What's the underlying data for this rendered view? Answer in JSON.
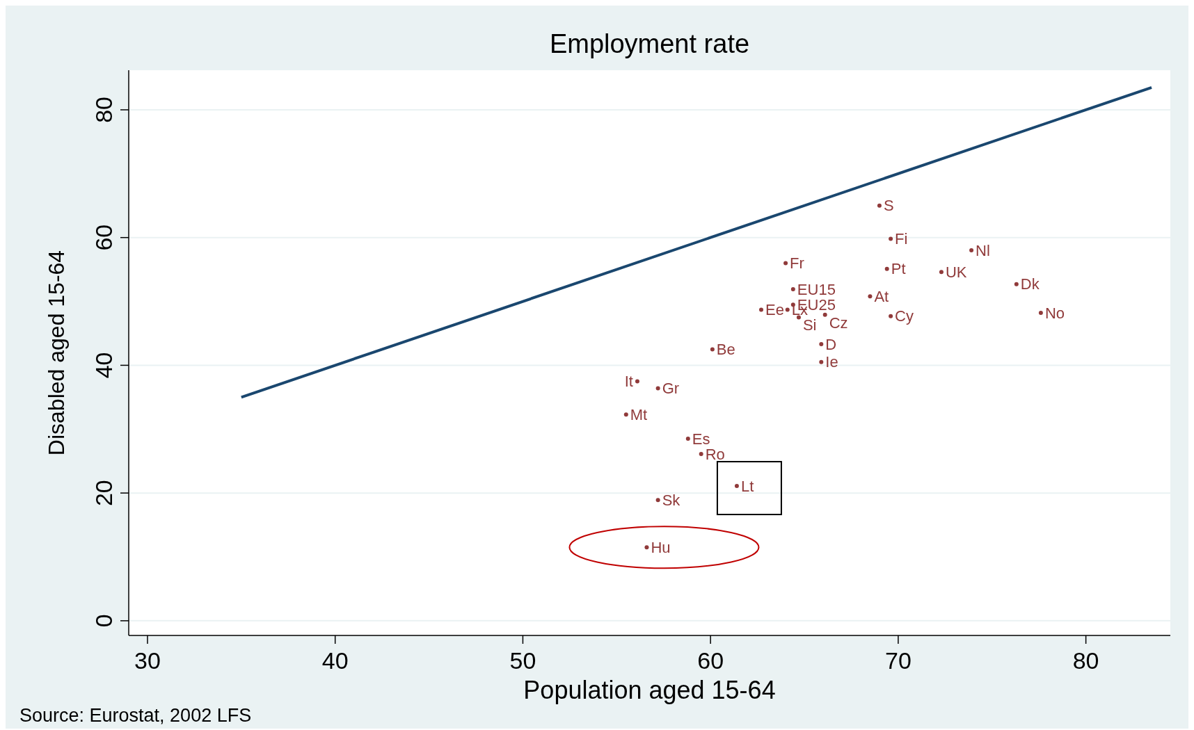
{
  "chart_data": {
    "type": "scatter",
    "title": "Employment rate",
    "xlabel": "Population aged 15-64",
    "ylabel": "Disabled aged 15-64",
    "annotations": [
      "Source: Eurostat, 2002 LFS"
    ],
    "xlim": [
      29,
      84.5
    ],
    "ylim": [
      -2.3,
      86.2
    ],
    "xticks": [
      30,
      40,
      50,
      60,
      70,
      80
    ],
    "yticks": [
      0,
      20,
      40,
      60,
      80
    ],
    "grid": "y",
    "marker": "circle",
    "series": [
      {
        "type": "line",
        "marker": "none",
        "color": "#1a476f",
        "x": [
          35,
          83.5
        ],
        "values": [
          35,
          83.5
        ]
      },
      {
        "name": "S",
        "color": "#903a3a",
        "x": [
          69.0
        ],
        "values": [
          65.0
        ]
      },
      {
        "name": "Fi",
        "color": "#903a3a",
        "x": [
          69.6
        ],
        "values": [
          59.8
        ]
      },
      {
        "name": "Nl",
        "color": "#903a3a",
        "x": [
          73.9
        ],
        "values": [
          58.0
        ]
      },
      {
        "name": "Fr",
        "color": "#903a3a",
        "x": [
          64.0
        ],
        "values": [
          56.0
        ]
      },
      {
        "name": "Pt",
        "color": "#903a3a",
        "x": [
          69.4
        ],
        "values": [
          55.1
        ]
      },
      {
        "name": "UK",
        "color": "#903a3a",
        "x": [
          72.3
        ],
        "values": [
          54.6
        ]
      },
      {
        "name": "Dk",
        "color": "#903a3a",
        "x": [
          76.3
        ],
        "values": [
          52.7
        ]
      },
      {
        "name": "EU15",
        "color": "#903a3a",
        "x": [
          64.4
        ],
        "values": [
          51.9
        ]
      },
      {
        "name": "At",
        "color": "#903a3a",
        "x": [
          68.5
        ],
        "values": [
          50.8
        ]
      },
      {
        "name": "EU25",
        "color": "#903a3a",
        "x": [
          64.4
        ],
        "values": [
          49.5
        ]
      },
      {
        "name": "Ee",
        "color": "#903a3a",
        "x": [
          62.7
        ],
        "values": [
          48.7
        ]
      },
      {
        "name": "Lx",
        "color": "#903a3a",
        "x": [
          64.1
        ],
        "values": [
          48.7
        ]
      },
      {
        "name": "No",
        "color": "#903a3a",
        "x": [
          77.6
        ],
        "values": [
          48.2
        ]
      },
      {
        "name": "Si",
        "color": "#903a3a",
        "x": [
          64.7
        ],
        "values": [
          47.5
        ]
      },
      {
        "name": "Cz",
        "color": "#903a3a",
        "x": [
          66.1
        ],
        "values": [
          47.9
        ]
      },
      {
        "name": "Cy",
        "color": "#903a3a",
        "x": [
          69.6
        ],
        "values": [
          47.7
        ]
      },
      {
        "name": "D",
        "color": "#903a3a",
        "x": [
          65.9
        ],
        "values": [
          43.3
        ]
      },
      {
        "name": "Ie",
        "color": "#903a3a",
        "x": [
          65.9
        ],
        "values": [
          40.5
        ]
      },
      {
        "name": "Be",
        "color": "#903a3a",
        "x": [
          60.1
        ],
        "values": [
          42.5
        ]
      },
      {
        "name": "It",
        "color": "#903a3a",
        "x": [
          56.1
        ],
        "values": [
          37.5
        ]
      },
      {
        "name": "Gr",
        "color": "#903a3a",
        "x": [
          57.2
        ],
        "values": [
          36.4
        ]
      },
      {
        "name": "Mt",
        "color": "#903a3a",
        "x": [
          55.5
        ],
        "values": [
          32.3
        ]
      },
      {
        "name": "Es",
        "color": "#903a3a",
        "x": [
          58.8
        ],
        "values": [
          28.5
        ]
      },
      {
        "name": "Ro",
        "color": "#903a3a",
        "x": [
          59.5
        ],
        "values": [
          26.1
        ]
      },
      {
        "name": "Lt",
        "color": "#903a3a",
        "x": [
          61.4
        ],
        "values": [
          21.1
        ]
      },
      {
        "name": "Sk",
        "color": "#903a3a",
        "x": [
          57.2
        ],
        "values": [
          18.9
        ]
      },
      {
        "name": "Hu",
        "color": "#903a3a",
        "x": [
          56.6
        ],
        "values": [
          11.5
        ]
      }
    ]
  }
}
